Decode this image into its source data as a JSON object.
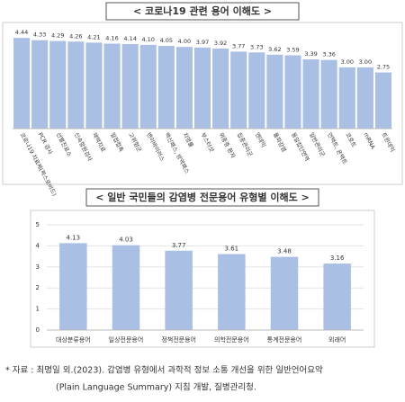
{
  "chart_data": [
    {
      "type": "bar",
      "title": "< 코로나19 관련 용어 이해도 >",
      "categories": [
        "코로나19 치료제(팍스로비드)",
        "PCR 검사",
        "선별진료소",
        "신속항원검사",
        "재택치료",
        "밀접접촉",
        "고위험군",
        "변이바이러스",
        "백신패스, 방역패스",
        "치명률",
        "부스터샷",
        "위중증 환자",
        "집중관리군",
        "엔데믹",
        "돌파감염",
        "동일집단면역",
        "일반관리군",
        "언택트, 온택트",
        "코호트",
        "mRNA",
        "트윈데믹"
      ],
      "values": [
        4.44,
        4.33,
        4.29,
        4.26,
        4.21,
        4.16,
        4.14,
        4.1,
        4.05,
        4.0,
        3.97,
        3.92,
        3.77,
        3.73,
        3.62,
        3.59,
        3.39,
        3.36,
        3.0,
        3.0,
        2.75
      ],
      "value_labels": [
        "4.44",
        "4.33",
        "4.29",
        "4.26",
        "4.21",
        "4.16",
        "4.14",
        "4.10",
        "4.05",
        "4.00",
        "3.97",
        "3.92",
        "3.77",
        "3.73",
        "3.62",
        "3.59",
        "3.39",
        "3.36",
        "3.00",
        "3.00",
        "2.75"
      ],
      "color": "#a9bfe4",
      "ylim": [
        0,
        4.8
      ]
    },
    {
      "type": "bar",
      "title": "< 일반 국민들의 감염병 전문용어 유형별 이해도 >",
      "categories": [
        "대상분류용어",
        "일상전문용어",
        "정책전문용어",
        "의학전문용어",
        "통계전문용어",
        "외래어"
      ],
      "values": [
        4.13,
        4.03,
        3.77,
        3.61,
        3.48,
        3.16
      ],
      "color": "#a9bfe4",
      "ylim": [
        0,
        5
      ],
      "yticks": [
        0,
        1,
        2,
        3,
        4,
        5
      ],
      "grid": true
    }
  ],
  "footnote": [
    "* 자료 : 최명일 외.(2023). 감염병 유형에서 과학적 정보 소통 개선을 위한 일반언어요약",
    "(Plain Language Summary) 지침 개발, 질병관리청."
  ]
}
